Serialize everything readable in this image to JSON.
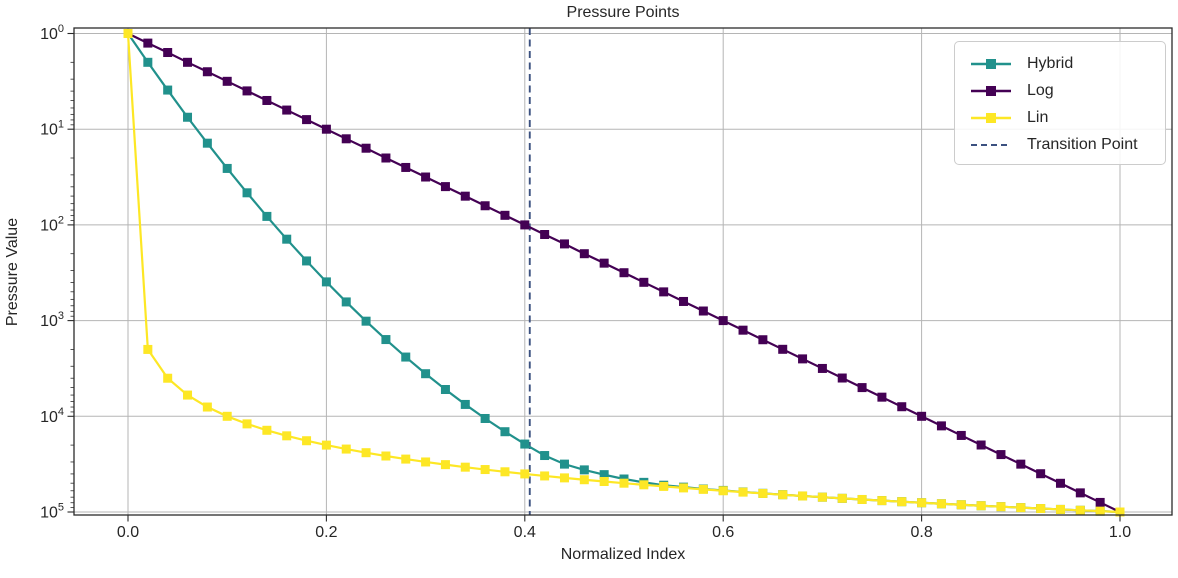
{
  "chart_data": {
    "type": "line",
    "title": "Pressure Points",
    "xlabel": "Normalized Index",
    "ylabel": "Pressure Value",
    "yscale": "log",
    "y_axis_inverted": true,
    "ylim": [
      1,
      100000
    ],
    "xlim": [
      -0.054,
      1.053
    ],
    "grid": true,
    "legend_position": "upper right",
    "xticks": {
      "values": [
        0.0,
        0.2,
        0.4,
        0.6,
        0.8,
        1.0
      ],
      "labels": [
        "0.0",
        "0.2",
        "0.4",
        "0.6",
        "0.8",
        "1.0"
      ]
    },
    "ytick_exponents": [
      0,
      1,
      2,
      3,
      4,
      5
    ],
    "ytick_base": "10",
    "x": [
      0,
      0.02,
      0.04,
      0.06,
      0.08,
      0.1,
      0.12,
      0.14,
      0.16,
      0.18,
      0.2,
      0.22,
      0.24,
      0.26,
      0.28,
      0.3,
      0.32,
      0.34,
      0.36,
      0.38,
      0.4,
      0.42,
      0.44,
      0.46,
      0.48,
      0.5,
      0.52,
      0.54,
      0.56,
      0.58,
      0.6,
      0.62,
      0.64,
      0.66,
      0.68,
      0.7,
      0.72,
      0.74,
      0.76,
      0.78,
      0.8,
      0.82,
      0.84,
      0.86,
      0.88,
      0.9,
      0.92,
      0.94,
      0.96,
      0.98,
      1.0
    ],
    "series": [
      {
        "name": "Hybrid",
        "color": "#21918c",
        "marker": "square",
        "values": [
          1,
          2,
          3.9,
          7.5,
          14,
          25.7,
          46.2,
          81.5,
          141,
          238,
          394,
          638,
          1014,
          1578,
          2404,
          3589,
          5248,
          7516,
          10540,
          14490,
          19500,
          25700,
          31600,
          36300,
          40700,
          45200,
          49000,
          52500,
          55000,
          57500,
          59500,
          61700,
          63800,
          65900,
          68001,
          70001,
          72001,
          74001,
          76001,
          78001,
          80001,
          82001,
          84001,
          86001,
          88001,
          90001,
          92001,
          94001,
          96001,
          98000,
          100000
        ]
      },
      {
        "name": "Log",
        "color": "#440154",
        "marker": "square",
        "values": [
          1,
          1.26,
          1.58,
          2,
          2.51,
          3.16,
          3.98,
          5.01,
          6.31,
          7.94,
          10,
          12.6,
          15.8,
          20,
          25.1,
          31.6,
          39.8,
          50.1,
          63.1,
          79.4,
          100,
          126,
          158,
          200,
          251,
          316,
          398,
          501,
          631,
          794,
          1000,
          1259,
          1585,
          1995,
          2512,
          3162,
          3981,
          5012,
          6310,
          7943,
          10000,
          12590,
          15850,
          19950,
          25120,
          31620,
          39810,
          50120,
          63100,
          79430,
          100000
        ]
      },
      {
        "name": "Lin",
        "color": "#fde725",
        "marker": "square",
        "values": [
          1,
          2001,
          4001,
          6001,
          8001,
          10001,
          12001,
          14001,
          16001,
          18001,
          20001,
          22001,
          24001,
          26001,
          28001,
          30001,
          32001,
          34001,
          36001,
          38001,
          40001,
          42001,
          44001,
          46001,
          48001,
          50001,
          52001,
          54001,
          56001,
          58001,
          60001,
          62001,
          64001,
          66001,
          68001,
          70001,
          72001,
          74001,
          76001,
          78001,
          80001,
          82001,
          84001,
          86001,
          88001,
          90001,
          92001,
          94001,
          96001,
          98000,
          100000
        ]
      }
    ],
    "vline": {
      "label": "Transition Point",
      "x": 0.405,
      "color": "#3c5180",
      "style": "dashed"
    }
  },
  "style": {
    "grid_color": "#b5b5b5",
    "spine_color": "#2b2b2b",
    "text_color": "#262626"
  }
}
